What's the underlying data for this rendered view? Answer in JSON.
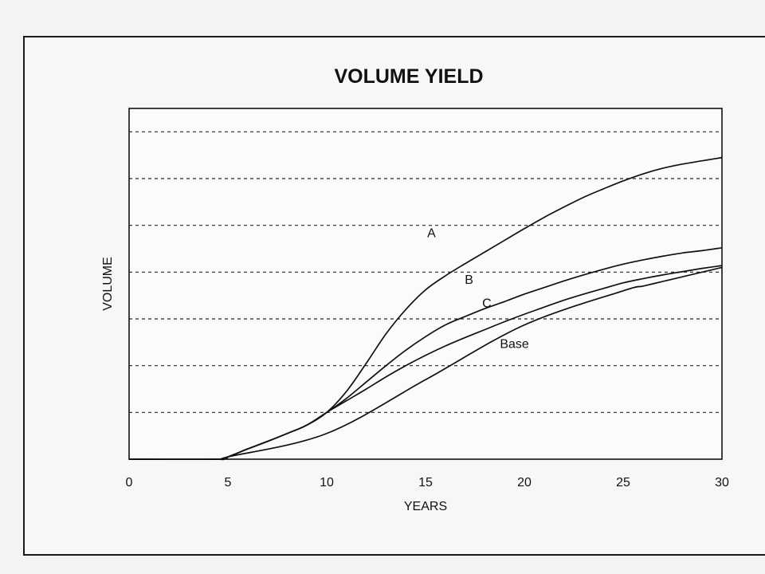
{
  "chart_data": {
    "type": "line",
    "title": "VOLUME YIELD",
    "xlabel": "YEARS",
    "ylabel": "VOLUME",
    "xlim": [
      0,
      30
    ],
    "ylim": [
      0,
      7.5
    ],
    "xticks": [
      "0",
      "5",
      "10",
      "15",
      "20",
      "25",
      "30"
    ],
    "grid": "horizontal dashed",
    "legend": "inline labels",
    "series": [
      {
        "name": "A",
        "x": [
          0,
          4.5,
          5,
          6,
          7,
          8,
          9,
          10,
          11,
          12,
          13,
          14,
          15,
          16,
          17,
          18,
          19,
          20,
          21,
          22,
          23,
          24,
          25,
          26,
          27,
          28,
          29,
          30
        ],
        "y": [
          0,
          0,
          0.05,
          0.22,
          0.38,
          0.55,
          0.73,
          1.0,
          1.45,
          2.05,
          2.68,
          3.2,
          3.62,
          3.92,
          4.18,
          4.43,
          4.68,
          4.93,
          5.17,
          5.39,
          5.6,
          5.78,
          5.95,
          6.1,
          6.22,
          6.31,
          6.38,
          6.45
        ]
      },
      {
        "name": "B",
        "x": [
          0,
          4.5,
          5,
          6,
          7,
          8,
          9,
          10,
          11,
          12,
          13,
          14,
          15,
          16,
          17,
          18,
          19,
          20,
          21,
          22,
          23,
          24,
          25,
          26,
          27,
          28,
          29,
          30
        ],
        "y": [
          0,
          0,
          0.05,
          0.22,
          0.38,
          0.55,
          0.73,
          1.0,
          1.3,
          1.65,
          2.0,
          2.33,
          2.62,
          2.87,
          3.05,
          3.22,
          3.37,
          3.53,
          3.67,
          3.81,
          3.94,
          4.06,
          4.17,
          4.26,
          4.34,
          4.41,
          4.46,
          4.52
        ]
      },
      {
        "name": "C",
        "x": [
          0,
          4.5,
          5,
          6,
          7,
          8,
          9,
          10,
          11,
          12,
          13,
          14,
          15,
          16,
          17,
          18,
          19,
          20,
          21,
          22,
          23,
          24,
          25,
          26,
          27,
          28,
          29,
          30
        ],
        "y": [
          0,
          0,
          0.05,
          0.22,
          0.38,
          0.55,
          0.73,
          1.0,
          1.25,
          1.5,
          1.76,
          2.0,
          2.22,
          2.42,
          2.6,
          2.77,
          2.94,
          3.1,
          3.25,
          3.4,
          3.53,
          3.65,
          3.77,
          3.86,
          3.94,
          4.01,
          4.08,
          4.14
        ]
      },
      {
        "name": "Base",
        "x": [
          0,
          4.5,
          5,
          10,
          15,
          20,
          25,
          26,
          27,
          28,
          29,
          30
        ],
        "y": [
          0,
          0,
          0.05,
          0.55,
          1.7,
          2.87,
          3.6,
          3.7,
          3.8,
          3.9,
          4.0,
          4.1
        ]
      }
    ]
  }
}
